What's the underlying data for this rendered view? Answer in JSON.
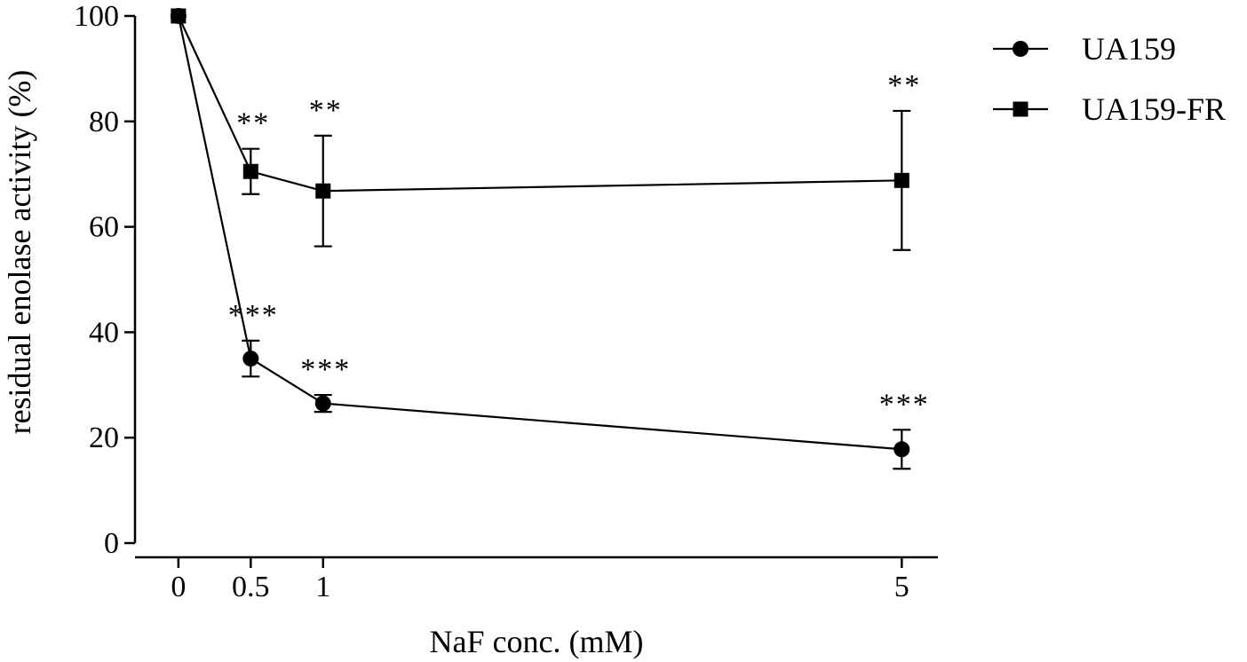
{
  "chart_data": {
    "type": "line",
    "title": "",
    "xlabel": "NaF conc. (mM)",
    "ylabel": "residual enolase activity (%)",
    "xlim": [
      -0.3,
      5.25
    ],
    "ylim": [
      0,
      100
    ],
    "x_ticks": [
      0,
      0.5,
      1,
      5
    ],
    "x_tick_labels": [
      "0",
      "0.5",
      "1",
      "5"
    ],
    "y_ticks": [
      0,
      20,
      40,
      60,
      80,
      100
    ],
    "y_tick_labels": [
      "0",
      "20",
      "40",
      "60",
      "80",
      "100"
    ],
    "grid": false,
    "legend_position": "top-right",
    "series": [
      {
        "name": "UA159",
        "marker": "circle",
        "x": [
          0,
          0.5,
          1,
          5
        ],
        "y": [
          100,
          35,
          26.5,
          17.8
        ],
        "error": [
          0,
          3.4,
          1.6,
          3.7
        ],
        "annotations": [
          "",
          "***",
          "***",
          "***"
        ]
      },
      {
        "name": "UA159-FR",
        "marker": "square",
        "x": [
          0,
          0.5,
          1,
          5
        ],
        "y": [
          100,
          70.5,
          66.8,
          68.8
        ],
        "error": [
          0,
          4.3,
          10.5,
          13.2
        ],
        "annotations": [
          "",
          "**",
          "**",
          "**"
        ]
      }
    ]
  }
}
